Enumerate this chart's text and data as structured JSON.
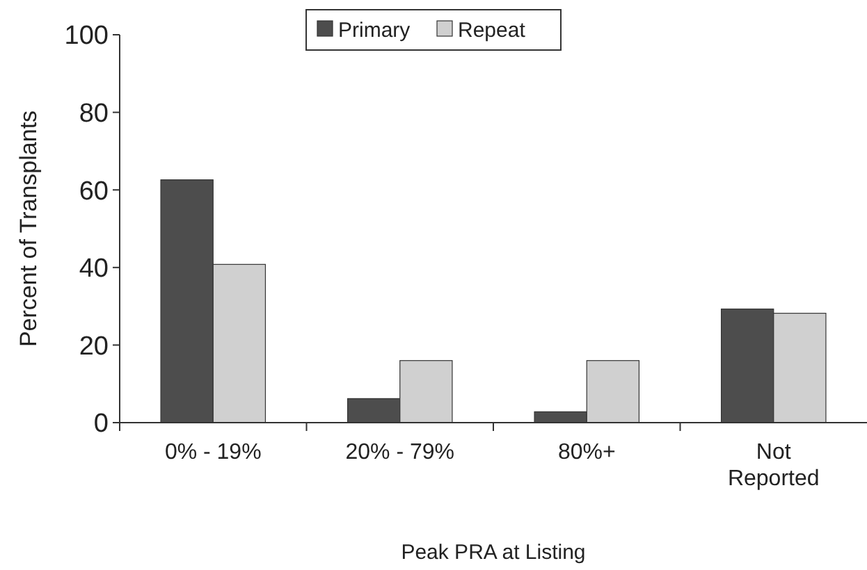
{
  "chart_data": {
    "type": "bar",
    "xlabel": "Peak PRA at Listing",
    "ylabel": "Percent of Transplants",
    "categories": [
      "0% - 19%",
      "20% - 79%",
      "80%+",
      "Not Reported"
    ],
    "series": [
      {
        "name": "Primary",
        "color": "#4d4d4d",
        "values": [
          62.6,
          6.2,
          2.8,
          29.3
        ]
      },
      {
        "name": "Repeat",
        "color": "#d0d0d0",
        "values": [
          40.8,
          16,
          16,
          28.2
        ]
      }
    ],
    "ylim": [
      0,
      100
    ],
    "yticks": [
      0,
      20,
      40,
      60,
      80,
      100
    ],
    "grid": false,
    "legend": "top"
  }
}
